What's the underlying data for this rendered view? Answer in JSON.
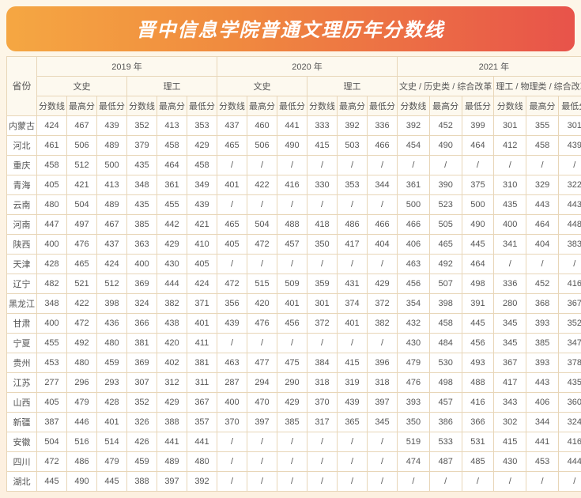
{
  "title": "晋中信息学院普通文理历年分数线",
  "yearHeaders": {
    "y2019": "2019 年",
    "y2020": "2020 年",
    "y2021": "2021 年"
  },
  "catHeaders": {
    "wenshi": "文史",
    "ligong": "理工",
    "wenshi21": "文史 / 历史类 / 综合改革",
    "ligong21": "理工 / 物理类 / 综合改革"
  },
  "scoreHeaders": {
    "fen": "分数线",
    "max": "最高分",
    "min": "最低分"
  },
  "provLabel": "省份",
  "provinces": [
    "内蒙古",
    "河北",
    "重庆",
    "青海",
    "云南",
    "河南",
    "陕西",
    "天津",
    "辽宁",
    "黑龙江",
    "甘肃",
    "宁夏",
    "贵州",
    "江苏",
    "山西",
    "新疆",
    "安徽",
    "四川",
    "湖北"
  ],
  "rows": [
    [
      "424",
      "467",
      "439",
      "352",
      "413",
      "353",
      "437",
      "460",
      "441",
      "333",
      "392",
      "336",
      "392",
      "452",
      "399",
      "301",
      "355",
      "301"
    ],
    [
      "461",
      "506",
      "489",
      "379",
      "458",
      "429",
      "465",
      "506",
      "490",
      "415",
      "503",
      "466",
      "454",
      "490",
      "464",
      "412",
      "458",
      "439"
    ],
    [
      "458",
      "512",
      "500",
      "435",
      "464",
      "458",
      "/",
      "/",
      "/",
      "/",
      "/",
      "/",
      "/",
      "/",
      "/",
      "/",
      "/",
      "/"
    ],
    [
      "405",
      "421",
      "413",
      "348",
      "361",
      "349",
      "401",
      "422",
      "416",
      "330",
      "353",
      "344",
      "361",
      "390",
      "375",
      "310",
      "329",
      "322"
    ],
    [
      "480",
      "504",
      "489",
      "435",
      "455",
      "439",
      "/",
      "/",
      "/",
      "/",
      "/",
      "/",
      "500",
      "523",
      "500",
      "435",
      "443",
      "443"
    ],
    [
      "447",
      "497",
      "467",
      "385",
      "442",
      "421",
      "465",
      "504",
      "488",
      "418",
      "486",
      "466",
      "466",
      "505",
      "490",
      "400",
      "464",
      "448"
    ],
    [
      "400",
      "476",
      "437",
      "363",
      "429",
      "410",
      "405",
      "472",
      "457",
      "350",
      "417",
      "404",
      "406",
      "465",
      "445",
      "341",
      "404",
      "383"
    ],
    [
      "428",
      "465",
      "424",
      "400",
      "430",
      "405",
      "/",
      "/",
      "/",
      "/",
      "/",
      "/",
      "463",
      "492",
      "464",
      "/",
      "/",
      "/"
    ],
    [
      "482",
      "521",
      "512",
      "369",
      "444",
      "424",
      "472",
      "515",
      "509",
      "359",
      "431",
      "429",
      "456",
      "507",
      "498",
      "336",
      "452",
      "416"
    ],
    [
      "348",
      "422",
      "398",
      "324",
      "382",
      "371",
      "356",
      "420",
      "401",
      "301",
      "374",
      "372",
      "354",
      "398",
      "391",
      "280",
      "368",
      "367"
    ],
    [
      "400",
      "472",
      "436",
      "366",
      "438",
      "401",
      "439",
      "476",
      "456",
      "372",
      "401",
      "382",
      "432",
      "458",
      "445",
      "345",
      "393",
      "352"
    ],
    [
      "455",
      "492",
      "480",
      "381",
      "420",
      "411",
      "/",
      "/",
      "/",
      "/",
      "/",
      "/",
      "430",
      "484",
      "456",
      "345",
      "385",
      "347"
    ],
    [
      "453",
      "480",
      "459",
      "369",
      "402",
      "381",
      "463",
      "477",
      "475",
      "384",
      "415",
      "396",
      "479",
      "530",
      "493",
      "367",
      "393",
      "378"
    ],
    [
      "277",
      "296",
      "293",
      "307",
      "312",
      "311",
      "287",
      "294",
      "290",
      "318",
      "319",
      "318",
      "476",
      "498",
      "488",
      "417",
      "443",
      "435"
    ],
    [
      "405",
      "479",
      "428",
      "352",
      "429",
      "367",
      "400",
      "470",
      "429",
      "370",
      "439",
      "397",
      "393",
      "457",
      "416",
      "343",
      "406",
      "360"
    ],
    [
      "387",
      "446",
      "401",
      "326",
      "388",
      "357",
      "370",
      "397",
      "385",
      "317",
      "365",
      "345",
      "350",
      "386",
      "366",
      "302",
      "344",
      "324"
    ],
    [
      "504",
      "516",
      "514",
      "426",
      "441",
      "441",
      "/",
      "/",
      "/",
      "/",
      "/",
      "/",
      "519",
      "533",
      "531",
      "415",
      "441",
      "416"
    ],
    [
      "472",
      "486",
      "479",
      "459",
      "489",
      "480",
      "/",
      "/",
      "/",
      "/",
      "/",
      "/",
      "474",
      "487",
      "485",
      "430",
      "453",
      "444"
    ],
    [
      "445",
      "490",
      "445",
      "388",
      "397",
      "392",
      "/",
      "/",
      "/",
      "/",
      "/",
      "/",
      "/",
      "/",
      "/",
      "/",
      "/",
      "/"
    ]
  ]
}
